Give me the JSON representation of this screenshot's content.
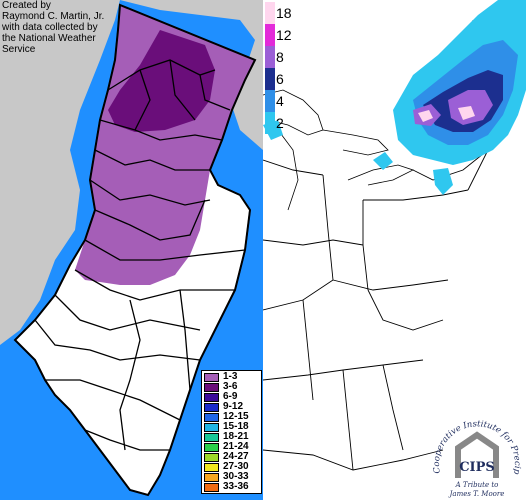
{
  "credit": {
    "lines": [
      "Created by",
      "Raymond C. Martin, Jr.",
      "with data collected by",
      "the National Weather",
      "Service"
    ]
  },
  "legend": {
    "items": [
      {
        "label": "1-3",
        "color": "#a55eb7"
      },
      {
        "label": "3-6",
        "color": "#6a0e7a"
      },
      {
        "label": "6-9",
        "color": "#3b0a9a"
      },
      {
        "label": "9-12",
        "color": "#1a2acb"
      },
      {
        "label": "12-15",
        "color": "#1f66e8"
      },
      {
        "label": "15-18",
        "color": "#1fb6e6"
      },
      {
        "label": "18-21",
        "color": "#19c998"
      },
      {
        "label": "21-24",
        "color": "#2ad04a"
      },
      {
        "label": "24-27",
        "color": "#9ed92a"
      },
      {
        "label": "27-30",
        "color": "#f2e81f"
      },
      {
        "label": "30-33",
        "color": "#f7a71f"
      },
      {
        "label": "33-36",
        "color": "#f06b12"
      }
    ]
  },
  "scale": {
    "items": [
      {
        "label": "18",
        "color": "#ffd6ee"
      },
      {
        "label": "12",
        "color": "#e32ad9"
      },
      {
        "label": "8",
        "color": "#9b5fd6"
      },
      {
        "label": "6",
        "color": "#1c2f8f"
      },
      {
        "label": "4",
        "color": "#2f8fe8"
      },
      {
        "label": "2",
        "color": "#2fc7ef"
      }
    ]
  },
  "logo": {
    "org": "Cooperative Institute for Precipitation Systems",
    "acronym": "CIPS",
    "tribute_line1": "A Tribute to",
    "tribute_line2": "James T. Moore"
  },
  "colors": {
    "ocean": "#1f8fff",
    "land_gray": "#c8c8c8",
    "snow_light": "#a55eb7",
    "snow_dark": "#6a0e7a",
    "snow_cyan": "#2fc7ef",
    "snow_blue": "#2f8fe8",
    "snow_navy": "#1c2f8f",
    "snow_violet": "#9b5fd6",
    "snow_pink": "#ffd6ee"
  }
}
